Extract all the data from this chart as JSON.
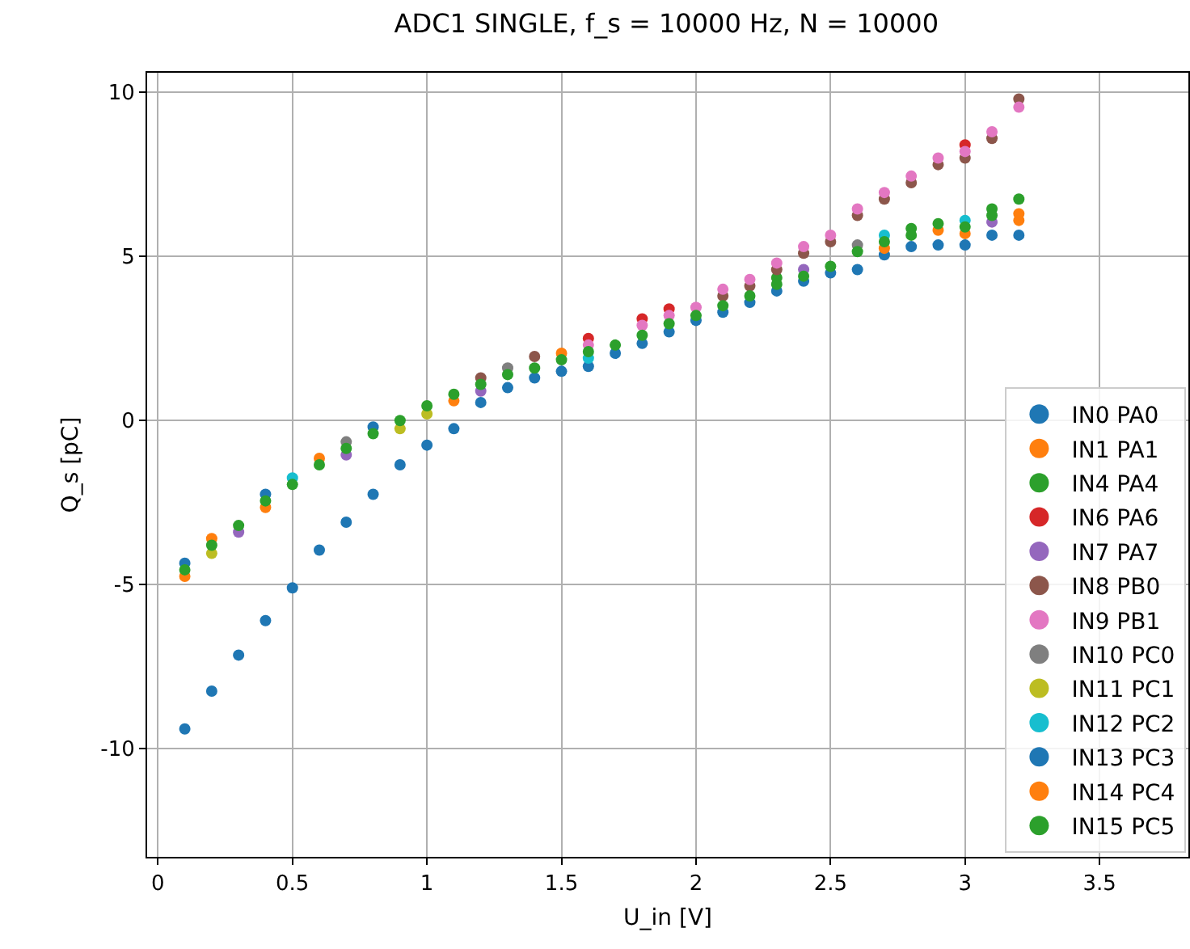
{
  "chart_data": {
    "type": "scatter",
    "title": "ADC1 SINGLE, f_s = 10000 Hz, N = 10000",
    "xlabel": "U_in [V]",
    "ylabel": "Q_s [pC]",
    "x": [
      0.1,
      0.2,
      0.3,
      0.4,
      0.5,
      0.6,
      0.7,
      0.8,
      0.9,
      1.0,
      1.1,
      1.2,
      1.3,
      1.4,
      1.5,
      1.6,
      1.7,
      1.8,
      1.9,
      2.0,
      2.1,
      2.2,
      2.3,
      2.4,
      2.5,
      2.6,
      2.7,
      2.8,
      2.9,
      3.0,
      3.1,
      3.2
    ],
    "xlim": [
      -0.04,
      3.83
    ],
    "xticks": [
      0.0,
      0.5,
      1.0,
      1.5,
      2.0,
      2.5,
      3.0,
      3.5
    ],
    "ylim": [
      -13.3,
      10.6
    ],
    "yticks": [
      -10,
      -5,
      0,
      5,
      10
    ],
    "grid": true,
    "legend": "bottom right",
    "marker": "circle",
    "series": [
      {
        "name": "IN0 PA0",
        "color": "#1f77b4",
        "values": [
          -9.4,
          -8.25,
          -7.15,
          -6.1,
          -5.1,
          -3.95,
          -3.1,
          -2.25,
          -1.35,
          -0.75,
          -0.25,
          0.55,
          1.0,
          1.3,
          1.5,
          1.65,
          2.05,
          2.35,
          2.7,
          3.05,
          3.3,
          3.6,
          3.95,
          4.25,
          4.5,
          4.6,
          5.05,
          5.3,
          5.35,
          5.35,
          5.65,
          5.65
        ]
      },
      {
        "name": "IN1 PA1",
        "color": "#ff7f0e",
        "x": [
          0.2,
          0.6,
          1.5,
          2.7,
          3.0,
          3.2
        ],
        "values": [
          -3.6,
          -1.15,
          2.05,
          5.25,
          5.7,
          6.1
        ]
      },
      {
        "name": "IN4 PA4",
        "color": "#2ca02c",
        "x": [
          2.3,
          2.8,
          3.1
        ],
        "values": [
          4.35,
          5.85,
          6.45
        ]
      },
      {
        "name": "IN6 PA6",
        "color": "#d62728",
        "x": [
          1.6,
          1.8,
          1.9,
          3.0
        ],
        "values": [
          2.5,
          3.1,
          3.4,
          8.4
        ]
      },
      {
        "name": "IN7 PA7",
        "color": "#9467bd",
        "x": [
          0.3,
          0.7,
          1.2,
          2.4,
          3.1
        ],
        "values": [
          -3.4,
          -1.05,
          0.9,
          4.6,
          6.05
        ]
      },
      {
        "name": "IN8 PB0",
        "color": "#8c564b",
        "x": [
          1.2,
          1.4,
          2.1,
          2.2,
          2.3,
          2.4,
          2.5,
          2.6,
          2.7,
          2.8,
          2.9,
          3.0,
          3.1,
          3.2
        ],
        "values": [
          1.3,
          1.95,
          3.8,
          4.1,
          4.6,
          5.1,
          5.45,
          6.25,
          6.75,
          7.25,
          7.8,
          8.0,
          8.6,
          9.8
        ]
      },
      {
        "name": "IN9 PB1",
        "color": "#e377c2",
        "x": [
          1.6,
          1.8,
          1.9,
          2.0,
          2.1,
          2.2,
          2.3,
          2.4,
          2.5,
          2.6,
          2.7,
          2.8,
          2.9,
          3.0,
          3.1,
          3.2
        ],
        "values": [
          2.3,
          2.9,
          3.2,
          3.45,
          4.0,
          4.3,
          4.8,
          5.3,
          5.65,
          6.45,
          6.95,
          7.45,
          8.0,
          8.2,
          8.8,
          9.55
        ]
      },
      {
        "name": "IN10 PC0",
        "color": "#7f7f7f",
        "x": [
          0.7,
          1.3,
          2.6
        ],
        "values": [
          -0.65,
          1.6,
          5.35
        ]
      },
      {
        "name": "IN11 PC1",
        "color": "#bcbd22",
        "x": [
          0.2,
          0.9,
          1.0
        ],
        "values": [
          -4.05,
          -0.25,
          0.2
        ]
      },
      {
        "name": "IN12 PC2",
        "color": "#17becf",
        "x": [
          0.5,
          1.6,
          2.7,
          3.0
        ],
        "values": [
          -1.75,
          1.9,
          5.65,
          6.1
        ]
      },
      {
        "name": "IN13 PC3",
        "color": "#1f77b4",
        "x": [
          0.1,
          0.4,
          0.8
        ],
        "values": [
          -4.35,
          -2.25,
          -0.2
        ]
      },
      {
        "name": "IN14 PC4",
        "color": "#ff7f0e",
        "x": [
          0.1,
          0.4,
          1.1,
          2.9,
          3.2
        ],
        "values": [
          -4.75,
          -2.65,
          0.6,
          5.8,
          6.3
        ]
      },
      {
        "name": "IN15 PC5",
        "color": "#2ca02c",
        "values": [
          -4.55,
          -3.8,
          -3.2,
          -2.45,
          -1.95,
          -1.35,
          -0.85,
          -0.4,
          0.0,
          0.45,
          0.8,
          1.1,
          1.4,
          1.6,
          1.85,
          2.1,
          2.3,
          2.6,
          2.95,
          3.2,
          3.5,
          3.8,
          4.15,
          4.4,
          4.7,
          5.15,
          5.45,
          5.65,
          6.0,
          5.9,
          6.25,
          6.75
        ]
      }
    ]
  }
}
